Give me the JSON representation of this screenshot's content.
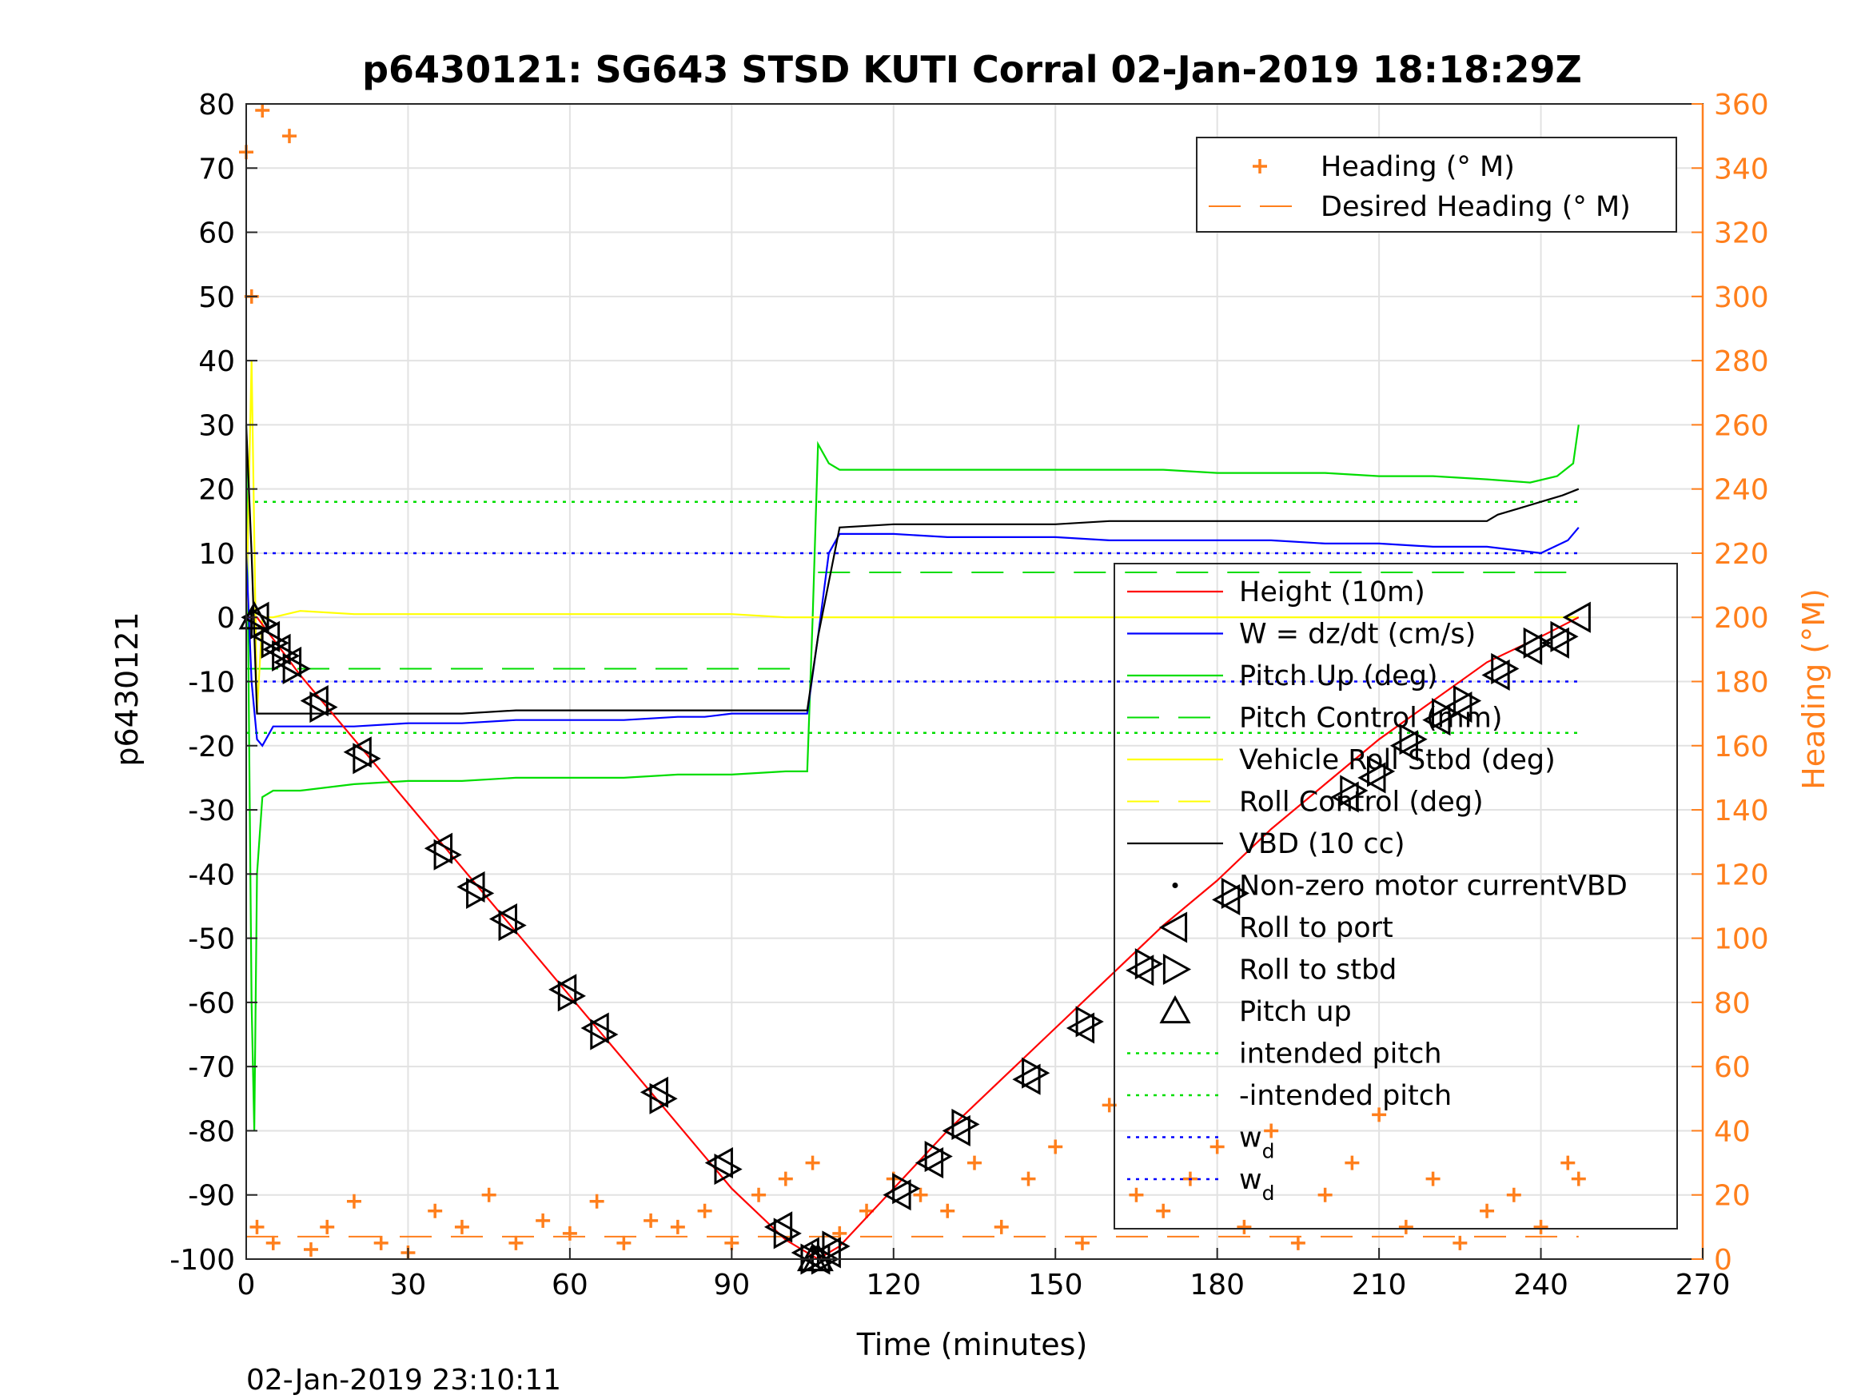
{
  "chart_data": {
    "type": "line",
    "title": "p6430121: SG643 STSD KUTI Corral 02-Jan-2019 18:18:29Z",
    "xlabel": "Time (minutes)",
    "ylabel": "p6430121",
    "y2label": "Heading (°M)",
    "footer": "02-Jan-2019 23:10:11",
    "xlim": [
      0,
      270
    ],
    "ylim": [
      -100,
      80
    ],
    "y2lim": [
      0,
      360
    ],
    "xticks": [
      0,
      30,
      60,
      90,
      120,
      150,
      180,
      210,
      240,
      270
    ],
    "yticks": [
      80,
      70,
      60,
      50,
      40,
      30,
      20,
      10,
      0,
      -10,
      -20,
      -30,
      -40,
      -50,
      -60,
      -70,
      -80,
      -90,
      -100
    ],
    "y2ticks": [
      360,
      340,
      320,
      300,
      280,
      260,
      240,
      220,
      200,
      180,
      160,
      140,
      120,
      100,
      80,
      60,
      40,
      20,
      0
    ],
    "grid": true,
    "colors": {
      "height": "#ff0000",
      "w": "#0000ff",
      "pitch": "#00dd00",
      "roll": "#ffff00",
      "vbd": "#000000",
      "heading": "#ff7f1c"
    },
    "legend_top": {
      "placement": "top-right",
      "entries": [
        {
          "label": "Heading (° M)",
          "color": "#ff7f1c",
          "style": "plus"
        },
        {
          "label": "Desired Heading (° M)",
          "color": "#ff7f1c",
          "style": "dashed"
        }
      ]
    },
    "legend_main": {
      "placement": "right",
      "entries": [
        {
          "label": "Height (10m)",
          "color": "#ff0000",
          "style": "solid"
        },
        {
          "label": "W = dz/dt (cm/s)",
          "color": "#0000ff",
          "style": "solid"
        },
        {
          "label": "Pitch Up (deg)",
          "color": "#00dd00",
          "style": "solid"
        },
        {
          "label": "Pitch Control (mm)",
          "color": "#00dd00",
          "style": "dashed"
        },
        {
          "label": "Vehicle Roll Stbd (deg)",
          "color": "#ffff00",
          "style": "solid"
        },
        {
          "label": "Roll Control (deg)",
          "color": "#ffff00",
          "style": "dashed"
        },
        {
          "label": "VBD (10 cc)",
          "color": "#000000",
          "style": "solid"
        },
        {
          "label": "Non-zero motor currentVBD",
          "color": "#000000",
          "style": "dot"
        },
        {
          "label": "Roll to port",
          "color": "#000000",
          "style": "tri-left"
        },
        {
          "label": "Roll to stbd",
          "color": "#000000",
          "style": "tri-right"
        },
        {
          "label": "Pitch up",
          "color": "#000000",
          "style": "tri-up"
        },
        {
          "label": "intended pitch",
          "color": "#00dd00",
          "style": "dotted"
        },
        {
          "label": "-intended pitch",
          "color": "#00dd00",
          "style": "dotted"
        },
        {
          "label": "w",
          "sub": "d",
          "color": "#0000ff",
          "style": "dotted"
        },
        {
          "label": "w",
          "sub": "d",
          "color": "#0000ff",
          "style": "dotted"
        }
      ]
    },
    "series": [
      {
        "name": "Height (10m)",
        "axis": "left",
        "style": "line",
        "x": [
          0,
          2,
          10,
          20,
          30,
          40,
          50,
          60,
          70,
          80,
          90,
          100,
          106,
          110,
          120,
          130,
          140,
          150,
          160,
          170,
          180,
          190,
          200,
          210,
          220,
          230,
          240,
          247
        ],
        "y": [
          0,
          0,
          -9,
          -19,
          -29,
          -39,
          -49,
          -59,
          -69,
          -79,
          -89,
          -97,
          -100,
          -98,
          -89,
          -80,
          -72,
          -64,
          -56,
          -48,
          -41,
          -33,
          -26,
          -19,
          -13,
          -7,
          -3,
          0
        ]
      },
      {
        "name": "W = dz/dt (cm/s)",
        "axis": "left",
        "style": "line",
        "x": [
          0,
          1,
          2,
          3,
          5,
          10,
          20,
          30,
          40,
          50,
          60,
          70,
          80,
          85,
          90,
          95,
          100,
          104,
          106,
          108,
          110,
          115,
          120,
          130,
          140,
          150,
          160,
          170,
          180,
          190,
          200,
          210,
          220,
          230,
          240,
          245,
          247
        ],
        "y": [
          10,
          -10,
          -19,
          -20,
          -17,
          -17,
          -17,
          -16.5,
          -16.5,
          -16,
          -16,
          -16,
          -15.5,
          -15.5,
          -15,
          -15,
          -15,
          -15,
          -3,
          10,
          13,
          13,
          13,
          12.5,
          12.5,
          12.5,
          12,
          12,
          12,
          12,
          11.5,
          11.5,
          11,
          11,
          10,
          12,
          14
        ]
      },
      {
        "name": "Pitch Up (deg)",
        "axis": "left",
        "style": "line",
        "x": [
          0,
          1,
          1.5,
          2,
          3,
          5,
          10,
          20,
          30,
          40,
          50,
          60,
          70,
          80,
          90,
          100,
          104,
          105,
          106,
          108,
          110,
          120,
          130,
          140,
          150,
          160,
          170,
          180,
          190,
          200,
          210,
          220,
          230,
          238,
          243,
          246,
          247
        ],
        "y": [
          30,
          -60,
          -80,
          -40,
          -28,
          -27,
          -27,
          -26,
          -25.5,
          -25.5,
          -25,
          -25,
          -25,
          -24.5,
          -24.5,
          -24,
          -24,
          0,
          27,
          24,
          23,
          23,
          23,
          23,
          23,
          23,
          23,
          22.5,
          22.5,
          22.5,
          22,
          22,
          21.5,
          21,
          22,
          24,
          30
        ]
      },
      {
        "name": "Vehicle Roll Stbd (deg)",
        "axis": "left",
        "style": "line",
        "x": [
          0,
          1,
          2,
          3,
          5,
          10,
          20,
          30,
          40,
          50,
          60,
          70,
          80,
          90,
          100,
          104,
          106,
          110,
          120,
          130,
          140,
          150,
          160,
          170,
          180,
          190,
          200,
          210,
          220,
          230,
          240,
          247
        ],
        "y": [
          0,
          40,
          -15,
          0,
          0,
          1,
          0.5,
          0.5,
          0.5,
          0.5,
          0.5,
          0.5,
          0.5,
          0.5,
          0,
          0,
          0,
          0,
          0,
          0,
          0,
          0,
          0,
          0,
          0,
          0,
          0,
          0,
          0,
          0,
          0,
          0
        ]
      },
      {
        "name": "VBD (10 cc)",
        "axis": "left",
        "style": "line",
        "x": [
          0,
          1,
          2,
          3,
          10,
          20,
          30,
          40,
          50,
          60,
          70,
          80,
          90,
          100,
          104,
          106,
          110,
          120,
          130,
          140,
          150,
          160,
          170,
          180,
          190,
          200,
          210,
          220,
          230,
          232,
          236,
          240,
          244,
          247
        ],
        "y": [
          30,
          10,
          -15,
          -15,
          -15,
          -15,
          -15,
          -15,
          -14.5,
          -14.5,
          -14.5,
          -14.5,
          -14.5,
          -14.5,
          -14.5,
          -3,
          14,
          14.5,
          14.5,
          14.5,
          14.5,
          15,
          15,
          15,
          15,
          15,
          15,
          15,
          15,
          16,
          17,
          18,
          19,
          20
        ]
      },
      {
        "name": "Roll to port",
        "axis": "left",
        "style": "tri-left",
        "x": [
          2,
          4,
          6,
          8,
          13,
          21,
          36,
          42,
          48,
          59,
          65,
          76,
          88,
          99,
          104,
          106,
          108,
          121,
          127,
          132,
          145,
          155,
          166,
          182,
          204,
          209,
          215,
          221,
          225,
          232,
          238,
          243,
          247
        ],
        "y": [
          0,
          -3,
          -5,
          -7,
          -13,
          -21,
          -36,
          -42,
          -47,
          -58,
          -64,
          -74,
          -85,
          -95,
          -99,
          -100,
          -99,
          -90,
          -85,
          -80,
          -72,
          -64,
          -55,
          -44,
          -28,
          -25,
          -20,
          -16,
          -14,
          -9,
          -5,
          -4,
          0
        ]
      },
      {
        "name": "Roll to stbd",
        "axis": "left",
        "style": "tri-right",
        "x": [
          3,
          5,
          7,
          9,
          14,
          22,
          37,
          43,
          49,
          60,
          66,
          77,
          89,
          100,
          105,
          107,
          109,
          122,
          128,
          133,
          146,
          156,
          167,
          183,
          205,
          210,
          216,
          222,
          226,
          233,
          239,
          244
        ],
        "y": [
          -1,
          -4,
          -6,
          -8,
          -14,
          -22,
          -37,
          -43,
          -48,
          -59,
          -65,
          -75,
          -86,
          -96,
          -100,
          -100,
          -98,
          -89,
          -84,
          -79,
          -71,
          -63,
          -54,
          -43,
          -27,
          -24,
          -19,
          -15,
          -13,
          -8,
          -4,
          -3
        ]
      },
      {
        "name": "Pitch up",
        "axis": "left",
        "style": "tri-up",
        "x": [
          1.5,
          105,
          106
        ],
        "y": [
          0,
          -100,
          -100
        ]
      },
      {
        "name": "Heading (° M)",
        "axis": "right",
        "style": "plus",
        "x": [
          0,
          1,
          2,
          3,
          5,
          8,
          12,
          15,
          20,
          25,
          30,
          35,
          40,
          45,
          50,
          55,
          60,
          65,
          70,
          75,
          80,
          85,
          90,
          95,
          100,
          105,
          110,
          115,
          120,
          125,
          130,
          135,
          140,
          145,
          150,
          155,
          160,
          165,
          170,
          175,
          180,
          185,
          190,
          195,
          200,
          205,
          210,
          215,
          220,
          225,
          230,
          235,
          240,
          245,
          247
        ],
        "y": [
          345,
          300,
          10,
          358,
          5,
          350,
          3,
          10,
          18,
          5,
          2,
          15,
          10,
          20,
          5,
          12,
          8,
          18,
          5,
          12,
          10,
          15,
          5,
          20,
          25,
          30,
          8,
          15,
          25,
          20,
          15,
          30,
          10,
          25,
          35,
          5,
          48,
          20,
          15,
          25,
          35,
          10,
          40,
          5,
          20,
          30,
          45,
          10,
          25,
          5,
          15,
          20,
          10,
          30,
          25
        ]
      }
    ],
    "reference_lines": [
      {
        "label": "intended pitch",
        "y": 18,
        "color": "#00dd00",
        "style": "dotted"
      },
      {
        "label": "-intended pitch",
        "y": -18,
        "color": "#00dd00",
        "style": "dotted"
      },
      {
        "label": "w_d",
        "y": 10,
        "color": "#0000ff",
        "style": "dotted"
      },
      {
        "label": "w_d",
        "y": -10,
        "color": "#0000ff",
        "style": "dotted"
      },
      {
        "label": "Pitch Control (mm)",
        "segments": [
          [
            0,
            104,
            -8
          ],
          [
            106,
            247,
            7
          ]
        ],
        "color": "#00dd00",
        "style": "dashed"
      },
      {
        "label": "Desired Heading (° M)",
        "y2": 7,
        "x": [
          0,
          247
        ],
        "color": "#ff7f1c",
        "style": "dashed"
      }
    ]
  }
}
